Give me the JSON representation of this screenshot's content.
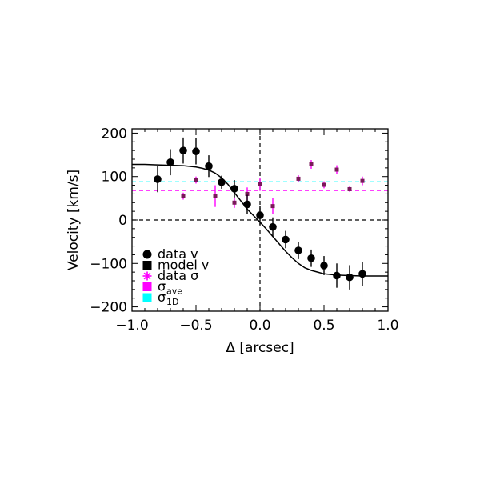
{
  "chart_data": {
    "type": "scatter",
    "xlabel": "Δ [arcsec]",
    "ylabel": "Velocity [km/s]",
    "xlim": [
      -1.0,
      1.0
    ],
    "ylim": [
      -210,
      210
    ],
    "x_ticks": [
      "−1.0",
      "−0.5",
      "0.0",
      "0.5",
      "1.0"
    ],
    "x_tick_values": [
      -1.0,
      -0.5,
      0.0,
      0.5,
      1.0
    ],
    "y_ticks": [
      "200",
      "100",
      "0",
      "−100",
      "−200"
    ],
    "y_tick_values": [
      200,
      100,
      0,
      -100,
      -200
    ],
    "grid": false,
    "legend_position": "bottom-left",
    "reference_lines": [
      {
        "axis": "y",
        "value": 0,
        "style": "dashed",
        "color": "#000000"
      },
      {
        "axis": "x",
        "value": 0,
        "style": "dashed",
        "color": "#000000"
      }
    ],
    "legend": [
      {
        "label": "data v",
        "marker": "circle",
        "color": "#000000"
      },
      {
        "label": "model v",
        "marker": "square",
        "color": "#000000"
      },
      {
        "label": "data σ",
        "marker": "asterisk",
        "color": "#ff00ff"
      },
      {
        "label": "σ",
        "sub": "ave",
        "marker": "square",
        "color": "#ff00ff"
      },
      {
        "label": "σ",
        "sub": "1D",
        "marker": "square",
        "color": "#00ffff"
      }
    ],
    "series": [
      {
        "key": "data_v",
        "kind": "points-with-errorbars",
        "color": "#000000",
        "points": [
          {
            "x": -0.8,
            "y": 94,
            "err": 30
          },
          {
            "x": -0.7,
            "y": 133,
            "err": 30
          },
          {
            "x": -0.6,
            "y": 160,
            "err": 30
          },
          {
            "x": -0.5,
            "y": 158,
            "err": 30
          },
          {
            "x": -0.4,
            "y": 124,
            "err": 25
          },
          {
            "x": -0.3,
            "y": 87,
            "err": 15
          },
          {
            "x": -0.2,
            "y": 72,
            "err": 20
          },
          {
            "x": -0.1,
            "y": 36,
            "err": 22
          },
          {
            "x": 0.0,
            "y": 11,
            "err": 22
          },
          {
            "x": 0.1,
            "y": -16,
            "err": 22
          },
          {
            "x": 0.2,
            "y": -45,
            "err": 20
          },
          {
            "x": 0.3,
            "y": -70,
            "err": 20
          },
          {
            "x": 0.4,
            "y": -88,
            "err": 20
          },
          {
            "x": 0.5,
            "y": -105,
            "err": 22
          },
          {
            "x": 0.6,
            "y": -128,
            "err": 28
          },
          {
            "x": 0.7,
            "y": -132,
            "err": 28
          },
          {
            "x": 0.8,
            "y": -124,
            "err": 28
          }
        ]
      },
      {
        "key": "model_v",
        "kind": "line",
        "color": "#000000",
        "x": [
          -1.0,
          -0.9,
          -0.8,
          -0.7,
          -0.6,
          -0.5,
          -0.45,
          -0.4,
          -0.35,
          -0.3,
          -0.25,
          -0.2,
          -0.15,
          -0.1,
          -0.05,
          0.0,
          0.05,
          0.1,
          0.15,
          0.2,
          0.25,
          0.3,
          0.35,
          0.4,
          0.45,
          0.5,
          0.6,
          0.7,
          0.8,
          0.9,
          1.0
        ],
        "y": [
          128,
          128,
          127,
          126,
          125,
          122,
          119,
          115,
          108,
          97,
          82,
          63,
          44,
          25,
          10,
          -5,
          -21,
          -38,
          -55,
          -72,
          -87,
          -100,
          -110,
          -116,
          -120,
          -124,
          -127,
          -128,
          -129,
          -129,
          -129
        ]
      },
      {
        "key": "data_sigma",
        "kind": "points-with-errorbars",
        "color": "#ff00ff",
        "points": [
          {
            "x": -0.6,
            "y": 55,
            "err": 8
          },
          {
            "x": -0.5,
            "y": 92,
            "err": 8
          },
          {
            "x": -0.35,
            "y": 55,
            "err": 25
          },
          {
            "x": -0.2,
            "y": 40,
            "err": 12
          },
          {
            "x": -0.1,
            "y": 60,
            "err": 15
          },
          {
            "x": 0.0,
            "y": 82,
            "err": 15
          },
          {
            "x": 0.1,
            "y": 32,
            "err": 18
          },
          {
            "x": 0.3,
            "y": 95,
            "err": 8
          },
          {
            "x": 0.4,
            "y": 128,
            "err": 10
          },
          {
            "x": 0.5,
            "y": 81,
            "err": 8
          },
          {
            "x": 0.6,
            "y": 116,
            "err": 10
          },
          {
            "x": 0.7,
            "y": 71,
            "err": 6
          },
          {
            "x": 0.8,
            "y": 90,
            "err": 10
          }
        ]
      },
      {
        "key": "sigma_ave",
        "kind": "hline",
        "color": "#ff00ff",
        "y": 68
      },
      {
        "key": "sigma_1D",
        "kind": "hline",
        "color": "#00ffff",
        "y": 88
      }
    ]
  }
}
